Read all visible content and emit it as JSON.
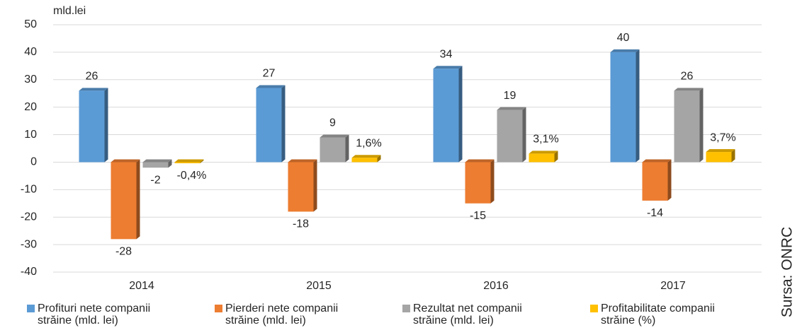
{
  "chart_data": {
    "type": "bar3d",
    "y_label": "mld.lei",
    "source": "Sursa: ONRC",
    "categories": [
      "2014",
      "2015",
      "2016",
      "2017"
    ],
    "series": [
      {
        "name": "Profituri nete companii străine (mld. lei)",
        "color": "#5b9bd5",
        "values": [
          26,
          27,
          34,
          40
        ]
      },
      {
        "name": "Pierderi nete companii străine (mld. lei)",
        "color": "#ed7d31",
        "values": [
          -28,
          -18,
          -15,
          -14
        ]
      },
      {
        "name": "Rezultat net companii străine (mld. lei)",
        "color": "#a5a5a5",
        "values": [
          -2,
          9,
          19,
          26
        ]
      },
      {
        "name": "Profitabilitate companii străine (%)",
        "color": "#ffc000",
        "values": [
          -0.4,
          1.6,
          3.1,
          3.7
        ],
        "value_labels": [
          "-0,4%",
          "1,6%",
          "3,1%",
          "3,7%"
        ]
      }
    ],
    "ylim": [
      -40,
      50
    ],
    "yticks": [
      -40,
      -30,
      -20,
      -10,
      0,
      10,
      20,
      30,
      40,
      50
    ],
    "grid": true
  }
}
